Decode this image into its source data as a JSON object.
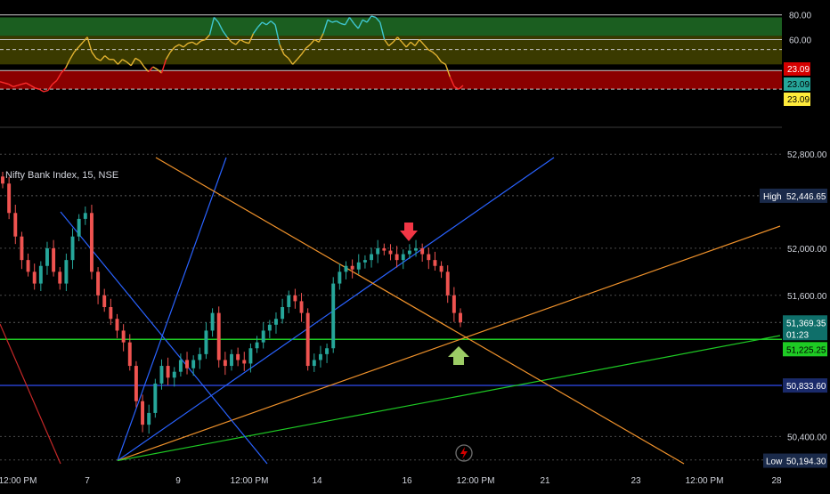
{
  "colors": {
    "background": "#000000",
    "grid": "#2a2a2a",
    "up": "#26a69a",
    "down": "#ef5350",
    "axis_text": "#d1d4dc",
    "fan_blue": "#2962ff",
    "fan_orange": "#f0922b",
    "level_green": "#1ecb24",
    "level_navy": "#283fc9",
    "osc_green": "#1b5e20",
    "osc_olive": "#3a3a00",
    "osc_red": "#8b0000"
  },
  "indicator": {
    "y_ticks": [
      "80.00",
      "60.00"
    ],
    "ylim": [
      0,
      92
    ],
    "zones": [
      {
        "name": "overbought",
        "from": 63,
        "to": 78,
        "color": "#1b5e20"
      },
      {
        "name": "neutral",
        "from": 40,
        "to": 63,
        "color": "#3a3a00"
      },
      {
        "name": "oversold",
        "from": 20,
        "to": 35,
        "color": "#8b0000"
      }
    ],
    "badges": [
      {
        "text": "23.09",
        "bg": "#d50000",
        "fg": "#ffffff"
      },
      {
        "text": "23.09",
        "bg": "#26a69a",
        "fg": "#000000"
      },
      {
        "text": "23.09",
        "bg": "#ffeb3b",
        "fg": "#000000"
      }
    ]
  },
  "chart_data": {
    "type": "candlestick",
    "title": "Nifty Bank Index, 15, NSE",
    "ylim": [
      50100,
      52900
    ],
    "y_ticks": [
      "52,800.00",
      "52,000.00",
      "51,600.00",
      "50,400.00"
    ],
    "x_ticks": [
      "12:00 PM",
      "7",
      "9",
      "12:00 PM",
      "14",
      "16",
      "12:00 PM",
      "21",
      "23",
      "12:00 PM",
      "28"
    ],
    "series": [
      {
        "values": [
          52550,
          52300,
          52100,
          51900,
          51800,
          51700,
          51850,
          52000,
          51800,
          51700,
          51900,
          52100,
          52250,
          52300,
          51800,
          51600,
          51500,
          51400,
          51300,
          51200,
          51000,
          50700,
          50500,
          50600,
          50850,
          51000,
          50900,
          50950,
          51050,
          50980,
          51050,
          51100,
          51300,
          51450,
          51050,
          51000,
          51100,
          51050,
          51020,
          51150,
          51200,
          51300,
          51350,
          51400,
          51500,
          51600,
          51550,
          51450,
          51000,
          51050,
          51100,
          51150,
          51700,
          51800,
          51850,
          51820,
          51880,
          51900,
          51950,
          52000,
          51980,
          51950,
          51900,
          51950,
          51980,
          52000,
          51950,
          51900,
          51850,
          51800,
          51600,
          51450,
          51370
        ]
      }
    ],
    "stats": {
      "high": "52,446.65",
      "low": "50,194.30",
      "current": "51,369.35",
      "countdown": "01:23",
      "level_1": "51,225.25",
      "level_2": "50,833.60",
      "high_label": "High",
      "low_label": "Low"
    }
  }
}
